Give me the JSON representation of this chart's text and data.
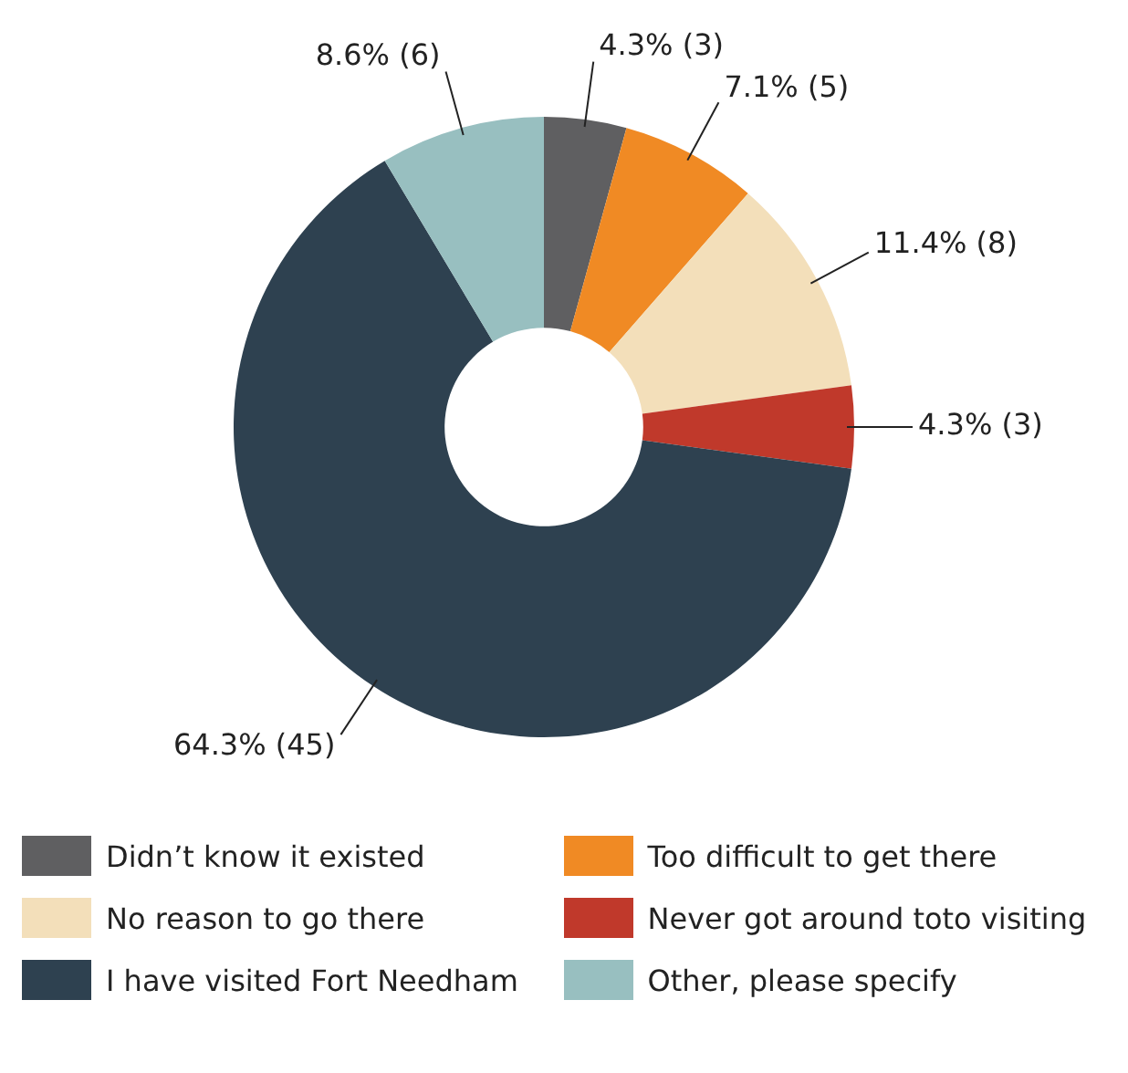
{
  "chart_data": {
    "type": "donut",
    "categories": [
      "Didn’t know it existed",
      "Too difficult to get there",
      "No reason to go there",
      "Never got around toto visiting",
      "I have visited Fort Needham",
      "Other, please specify"
    ],
    "values": [
      3,
      5,
      8,
      3,
      45,
      6
    ],
    "colors": [
      "#5f5f61",
      "#f08a24",
      "#f3dfba",
      "#c0392b",
      "#2e4150",
      "#98bfc0"
    ],
    "value_labels": [
      "4.3% (3)",
      "7.1% (5)",
      "11.4% (8)",
      "4.3% (3)",
      "64.3% (45)",
      "8.6% (6)"
    ],
    "legend": "bottom"
  }
}
